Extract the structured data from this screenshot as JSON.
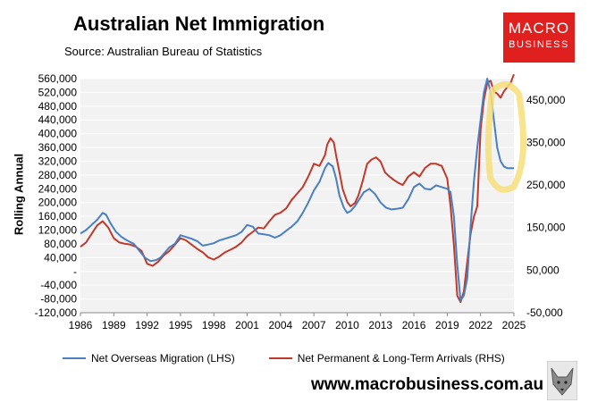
{
  "header": {
    "title": "Australian Net Immigration",
    "subtitle": "Source: Australian Bureau of Statistics"
  },
  "logo": {
    "line1": "MACRO",
    "line2": "BUSINESS",
    "color": "#e0201f"
  },
  "footer": {
    "url": "www.macrobusiness.com.au"
  },
  "colors": {
    "nom": "#4a7fc1",
    "arrivals": "#c0392b",
    "highlight": "#f7df7a",
    "plot_bg": "#f2f2f2",
    "grid": "#ffffff"
  },
  "chart_data": {
    "type": "line",
    "title": "Australian Net Immigration",
    "xlabel": "",
    "ylabel": "Rolling Annual",
    "xlim": [
      1986,
      2025
    ],
    "ylim": [
      -120000,
      560000
    ],
    "y2lim": [
      -50000,
      500000
    ],
    "xticks": [
      1986,
      1989,
      1992,
      1995,
      1998,
      2001,
      2004,
      2007,
      2010,
      2013,
      2016,
      2019,
      2022,
      2025
    ],
    "yticks": [
      -120000,
      -80000,
      -40000,
      0,
      40000,
      80000,
      120000,
      160000,
      200000,
      240000,
      280000,
      320000,
      360000,
      400000,
      440000,
      480000,
      520000,
      560000
    ],
    "yticklabels": [
      "-120,000",
      "-80,000",
      "-40,000",
      "-",
      "40,000",
      "80,000",
      "120,000",
      "160,000",
      "200,000",
      "240,000",
      "280,000",
      "320,000",
      "360,000",
      "400,000",
      "440,000",
      "480,000",
      "520,000",
      "560,000"
    ],
    "y2ticks": [
      -50000,
      50000,
      150000,
      250000,
      350000,
      450000
    ],
    "y2ticklabels": [
      "-50,000",
      "50,000",
      "150,000",
      "250,000",
      "350,000",
      "450,000"
    ],
    "legend_position": "bottom",
    "series": [
      {
        "name": "Net Overseas Migration (LHS)",
        "axis": "left",
        "x": [
          1986,
          1986.5,
          1987,
          1987.5,
          1988,
          1988.3,
          1988.7,
          1989.2,
          1989.7,
          1990.2,
          1990.8,
          1991.3,
          1991.8,
          1992.3,
          1992.8,
          1993.2,
          1993.6,
          1994,
          1994.5,
          1995,
          1995.5,
          1996,
          1996.5,
          1997,
          1997.5,
          1998,
          1998.5,
          1999,
          1999.5,
          2000,
          2000.5,
          2001,
          2001.5,
          2002,
          2002.5,
          2003,
          2003.5,
          2004,
          2004.5,
          2005,
          2005.5,
          2006,
          2006.5,
          2007,
          2007.5,
          2008,
          2008.3,
          2008.7,
          2009,
          2009.3,
          2009.7,
          2010,
          2010.3,
          2010.7,
          2011,
          2011.5,
          2012,
          2012.5,
          2013,
          2013.5,
          2014,
          2014.5,
          2015,
          2015.5,
          2016,
          2016.5,
          2017,
          2017.5,
          2018,
          2018.5,
          2019,
          2019.3,
          2019.6,
          2019.9,
          2020.2,
          2020.5,
          2020.8,
          2021.1,
          2021.4,
          2021.7,
          2022,
          2022.3,
          2022.6,
          2022.9,
          2023.2,
          2023.5,
          2023.8,
          2024.1,
          2024.4,
          2024.7,
          2025
        ],
        "values": [
          110000,
          120000,
          135000,
          150000,
          170000,
          165000,
          140000,
          115000,
          100000,
          90000,
          80000,
          60000,
          40000,
          30000,
          33000,
          40000,
          55000,
          70000,
          80000,
          105000,
          100000,
          95000,
          88000,
          75000,
          78000,
          82000,
          90000,
          95000,
          100000,
          105000,
          115000,
          135000,
          130000,
          110000,
          108000,
          105000,
          98000,
          105000,
          118000,
          130000,
          145000,
          170000,
          200000,
          235000,
          260000,
          300000,
          315000,
          305000,
          270000,
          220000,
          185000,
          170000,
          175000,
          190000,
          205000,
          230000,
          240000,
          225000,
          200000,
          185000,
          180000,
          182000,
          185000,
          210000,
          245000,
          255000,
          240000,
          238000,
          250000,
          245000,
          240000,
          230000,
          160000,
          20000,
          -85000,
          -70000,
          -20000,
          130000,
          260000,
          360000,
          440000,
          520000,
          560000,
          520000,
          440000,
          360000,
          320000,
          305000,
          300000,
          300000,
          300000
        ]
      },
      {
        "name": "Net Permanent & Long-Term Arrivals (RHS)",
        "axis": "right",
        "x": [
          1986,
          1986.5,
          1987,
          1987.5,
          1988,
          1988.5,
          1989,
          1989.5,
          1990,
          1990.5,
          1991,
          1991.5,
          1992,
          1992.5,
          1993,
          1993.5,
          1994,
          1994.5,
          1995,
          1995.5,
          1996,
          1996.5,
          1997,
          1997.5,
          1998,
          1998.5,
          1999,
          1999.5,
          2000,
          2000.5,
          2001,
          2001.5,
          2002,
          2002.5,
          2003,
          2003.5,
          2004,
          2004.5,
          2005,
          2005.5,
          2006,
          2006.5,
          2007,
          2007.5,
          2008,
          2008.2,
          2008.5,
          2008.8,
          2009,
          2009.3,
          2009.6,
          2010,
          2010.3,
          2010.7,
          2011,
          2011.4,
          2011.8,
          2012.2,
          2012.6,
          2013,
          2013.4,
          2013.8,
          2014.2,
          2014.6,
          2015,
          2015.5,
          2016,
          2016.5,
          2017,
          2017.5,
          2018,
          2018.5,
          2019,
          2019.3,
          2019.6,
          2019.9,
          2020.2,
          2020.5,
          2020.8,
          2021.1,
          2021.4,
          2021.7,
          2022,
          2022.3,
          2022.6,
          2022.9,
          2023.2,
          2023.5,
          2023.8,
          2024.1,
          2024.4,
          2024.7,
          2025
        ],
        "values": [
          105000,
          115000,
          135000,
          155000,
          165000,
          150000,
          125000,
          115000,
          112000,
          110000,
          105000,
          95000,
          65000,
          60000,
          70000,
          85000,
          95000,
          110000,
          125000,
          120000,
          110000,
          100000,
          92000,
          80000,
          75000,
          82000,
          92000,
          98000,
          105000,
          115000,
          130000,
          140000,
          150000,
          148000,
          165000,
          180000,
          185000,
          195000,
          215000,
          230000,
          245000,
          270000,
          300000,
          295000,
          320000,
          345000,
          360000,
          350000,
          320000,
          280000,
          240000,
          210000,
          200000,
          208000,
          225000,
          260000,
          300000,
          310000,
          315000,
          305000,
          280000,
          270000,
          262000,
          255000,
          250000,
          270000,
          280000,
          270000,
          290000,
          300000,
          300000,
          295000,
          265000,
          200000,
          110000,
          -10000,
          -25000,
          0,
          70000,
          135000,
          175000,
          200000,
          380000,
          450000,
          490000,
          495000,
          470000,
          465000,
          455000,
          470000,
          480000,
          490000,
          510000
        ]
      }
    ]
  }
}
